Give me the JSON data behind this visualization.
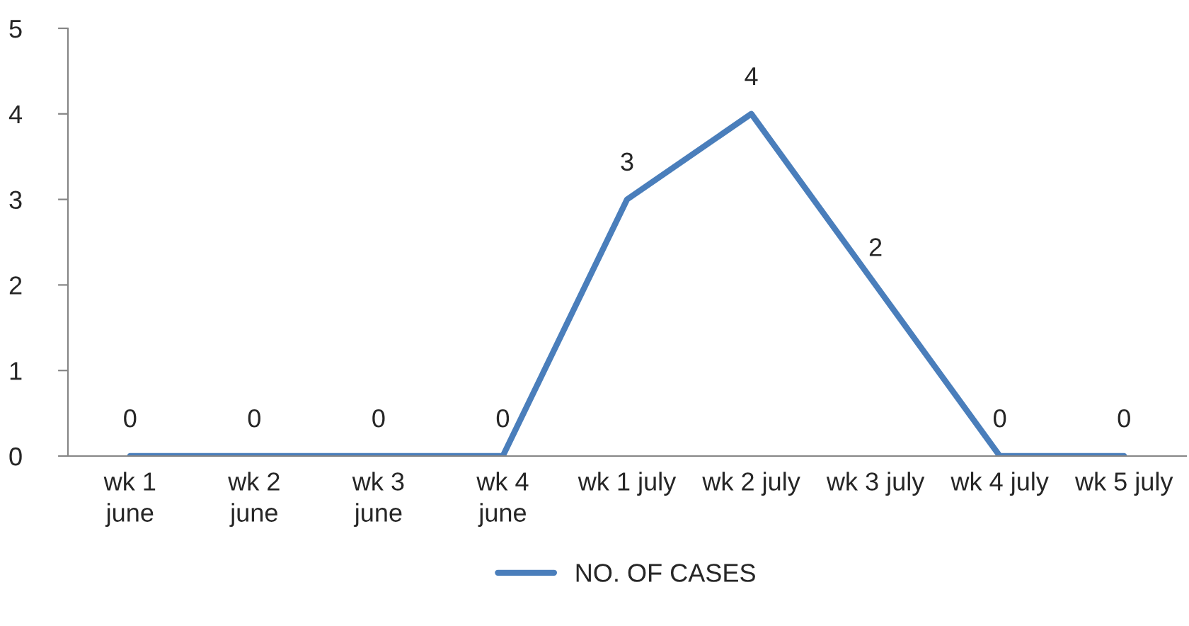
{
  "chart_data": {
    "type": "line",
    "categories": [
      "wk 1\njune",
      "wk 2\njune",
      "wk 3\njune",
      "wk 4\njune",
      "wk 1 july",
      "wk 2 july",
      "wk 3 july",
      "wk 4 july",
      "wk 5 july"
    ],
    "series": [
      {
        "name": "NO. OF CASES",
        "color": "#4a7ebb",
        "values": [
          0,
          0,
          0,
          0,
          3,
          4,
          2,
          0,
          0
        ]
      }
    ],
    "ylim": [
      0,
      5
    ],
    "yticks": [
      0,
      1,
      2,
      3,
      4,
      5
    ],
    "grid": false,
    "legend": "bottom",
    "data_labels": true,
    "marker": "none",
    "line_style": "solid"
  }
}
